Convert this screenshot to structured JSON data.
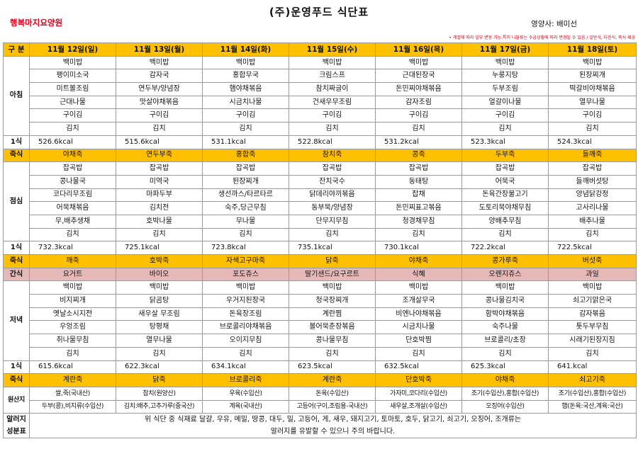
{
  "header": {
    "title": "(주)운영푸드 식단표",
    "facility": "행복마지요양원",
    "dietitian": "영양사: 배미선",
    "notice": "• 계절에 따라 일부 변동 가능,특히 나물류는 수급상황에 따라 변경될 수 있음 / 일반식, 다진식, 죽식 제공"
  },
  "columns": {
    "label": "구 분",
    "days": [
      "11월 12일(일)",
      "11월 13일(월)",
      "11월 14일(화)",
      "11월 15일(수)",
      "11월 16일(목)",
      "11월 17일(금)",
      "11월 18일(토)"
    ]
  },
  "labels": {
    "breakfast": "아침",
    "lunch": "점심",
    "dinner": "저녁",
    "one_meal": "1식",
    "porridge": "죽식",
    "snack": "간식",
    "origin": "원산지",
    "allergy_1": "알러지",
    "allergy_2": "성분표"
  },
  "breakfast": [
    [
      "백미밥",
      "백미밥",
      "백미밥",
      "백미밥",
      "백미밥",
      "백미밥",
      "백미밥"
    ],
    [
      "팽이미소국",
      "감자국",
      "홍합무국",
      "크림스프",
      "근대된장국",
      "누룽지탕",
      "된장찌개"
    ],
    [
      "미트볼조림",
      "연두부/양념장",
      "햄야채볶음",
      "참치짜글이",
      "돈민찌야채볶음",
      "두부조림",
      "떡갈비야채볶음"
    ],
    [
      "근대나물",
      "맛살야채볶음",
      "시금치나물",
      "건새우무조림",
      "감자조림",
      "얼갈이나물",
      "열무나물"
    ],
    [
      "구이김",
      "구이김",
      "구이김",
      "구이김",
      "구이김",
      "구이김",
      "구이김"
    ],
    [
      "김치",
      "김치",
      "김치",
      "김치",
      "김치",
      "김치",
      "김치"
    ]
  ],
  "breakfast_kcal": [
    "526.6kcal",
    "515.6kcal",
    "531.1kcal",
    "522.8kcal",
    "531.2kcal",
    "523.3kcal",
    "524.3kcal"
  ],
  "breakfast_porridge": [
    "야채죽",
    "연두부죽",
    "홍합죽",
    "참치죽",
    "콩죽",
    "두부죽",
    "들깨죽"
  ],
  "lunch": [
    [
      "잡곡밥",
      "잡곡밥",
      "잡곡밥",
      "잡곡밥",
      "잡곡밥",
      "잡곡밥",
      "잡곡밥"
    ],
    [
      "콩나물국",
      "미역국",
      "된장찌개",
      "잔치국수",
      "동태탕",
      "어묵국",
      "들깨버섯탕"
    ],
    [
      "코다리무조림",
      "마파두부",
      "생선까스/타르타르",
      "닭데리야끼볶음",
      "잡채",
      "돈육간장불고기",
      "양념닭강정"
    ],
    [
      "어묵채볶음",
      "김치전",
      "숙주,당근무침",
      "동부묵/양념장",
      "돈민찌표고볶음",
      "도토리묵야채무침",
      "고사리나물"
    ],
    [
      "무,배추생채",
      "호박나물",
      "무나물",
      "단무지무침",
      "청경채무침",
      "양배추무침",
      "배추나물"
    ],
    [
      "김치",
      "김치",
      "김치",
      "김치",
      "김치",
      "김치",
      "김치"
    ]
  ],
  "lunch_kcal": [
    "732.3kcal",
    "725.1kcal",
    "723.8kcal",
    "735.1kcal",
    "730.1kcal",
    "722.2kcal",
    "722.5kcal"
  ],
  "lunch_porridge": [
    "깨죽",
    "호박죽",
    "자색고구마죽",
    "닭죽",
    "야채죽",
    "콩가루죽",
    "버섯죽"
  ],
  "snack": [
    "요거트",
    "바이오",
    "포도쥬스",
    "딸기샌드/요구르트",
    "식혜",
    "오렌지쥬스",
    "과일"
  ],
  "dinner": [
    [
      "백미밥",
      "백미밥",
      "백미밥",
      "백미밥",
      "백미밥",
      "백미밥",
      "백미밥"
    ],
    [
      "비지찌개",
      "닭곰탕",
      "우거지된장국",
      "청국장찌개",
      "조개살무국",
      "콩나물김치국",
      "쇠고기맑은국"
    ],
    [
      "옛날소시지전",
      "새우살 무조림",
      "돈육장조림",
      "계란찜",
      "비엔나야채볶음",
      "함박야채볶음",
      "감자볶음"
    ],
    [
      "우엉조림",
      "탕평채",
      "브로콜리야채볶음",
      "볼어묵춘장볶음",
      "시금치나물",
      "숙주나물",
      "톳두부무침"
    ],
    [
      "취나물무침",
      "열무나물",
      "오이지무침",
      "콩나물무침",
      "단호박찜",
      "브로콜리/초장",
      "시래기된장지짐"
    ],
    [
      "김치",
      "김치",
      "김치",
      "김치",
      "김치",
      "김치",
      "김치"
    ]
  ],
  "dinner_kcal": [
    "615.6kcal",
    "622.3kcal",
    "634.1kcal",
    "623.5kcal",
    "632.5kcal",
    "625.3kcal",
    "641.kcal"
  ],
  "dinner_porridge": [
    "계란죽",
    "닭죽",
    "브로콜리죽",
    "계란죽",
    "단호박죽",
    "야채죽",
    "쇠고기죽"
  ],
  "origin": {
    "row1": [
      "쌀,죽(국내산)",
      "참치(원양산)",
      "우육(수입산)",
      "돈육(수입산)",
      "가자미,코다리(수입산)",
      "조기(수입산),홍합(수입산)",
      "조기(수입산),홍합(수입산)"
    ],
    "row2": [
      "두부(콩),비지류(수입산)",
      "김치:배추,고추가루(중국산)",
      "계육(국내산)",
      "고등어(구이,조림용-국내산)",
      "새우살,조개살(수입산)",
      "오징어(수입산)",
      "햄(돈육:국산,계육:국산)"
    ]
  },
  "allergy": {
    "line1": "위 식단 중 식재료 달걀, 우유, 메밀, 땅콩, 대두, 밀, 고등어, 게, 새우, 돼지고기, 토마토, 호두, 닭고기, 쇠고기, 오징어, 조개류는",
    "line2": "알러지를 유발할 수 있으니 주의 바랍니다."
  }
}
